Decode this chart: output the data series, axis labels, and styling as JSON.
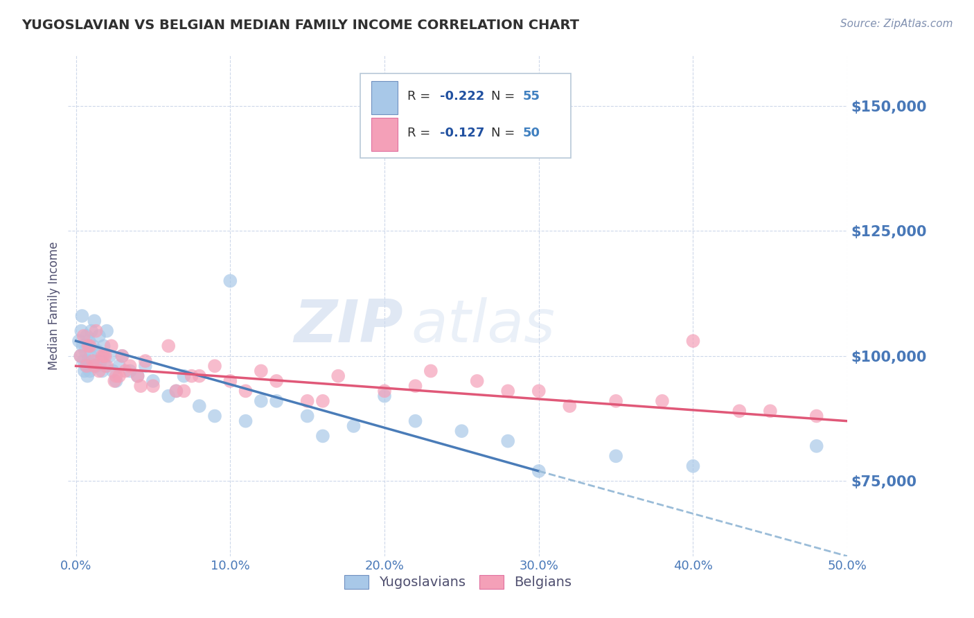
{
  "title": "YUGOSLAVIAN VS BELGIAN MEDIAN FAMILY INCOME CORRELATION CHART",
  "source": "Source: ZipAtlas.com",
  "ylabel": "Median Family Income",
  "xlim": [
    -0.5,
    50.0
  ],
  "ylim": [
    60000,
    160000
  ],
  "yticks": [
    75000,
    100000,
    125000,
    150000
  ],
  "xticks": [
    0.0,
    10.0,
    20.0,
    30.0,
    40.0,
    50.0
  ],
  "yug_R": -0.222,
  "yug_N": 55,
  "bel_R": -0.127,
  "bel_N": 50,
  "yug_color": "#a8c8e8",
  "bel_color": "#f4a0b8",
  "yug_line_color": "#4a7cb8",
  "bel_line_color": "#e05878",
  "dash_line_color": "#9abcd8",
  "background_color": "#ffffff",
  "grid_color": "#c8d4e8",
  "title_color": "#303030",
  "axis_label_color": "#505070",
  "tick_label_color": "#4878b8",
  "legend_r_color": "#2050a0",
  "legend_n_color": "#4080c0",
  "yug_scatter_x": [
    0.2,
    0.3,
    0.35,
    0.4,
    0.45,
    0.5,
    0.55,
    0.6,
    0.65,
    0.7,
    0.75,
    0.8,
    0.85,
    0.9,
    0.95,
    1.0,
    1.1,
    1.2,
    1.3,
    1.4,
    1.5,
    1.6,
    1.7,
    1.8,
    1.9,
    2.0,
    2.2,
    2.4,
    2.6,
    2.8,
    3.0,
    3.5,
    4.0,
    4.5,
    5.0,
    6.0,
    7.0,
    8.0,
    10.0,
    12.0,
    15.0,
    18.0,
    20.0,
    6.5,
    9.0,
    11.0,
    13.0,
    16.0,
    22.0,
    25.0,
    28.0,
    30.0,
    35.0,
    40.0,
    48.0
  ],
  "yug_scatter_y": [
    103000,
    100000,
    105000,
    108000,
    102000,
    99000,
    97000,
    101000,
    98000,
    104000,
    96000,
    99000,
    103000,
    97000,
    100000,
    105000,
    102000,
    107000,
    98000,
    101000,
    104000,
    99000,
    97000,
    102000,
    98000,
    105000,
    100000,
    97000,
    95000,
    98000,
    100000,
    97000,
    96000,
    98000,
    95000,
    92000,
    96000,
    90000,
    115000,
    91000,
    88000,
    86000,
    92000,
    93000,
    88000,
    87000,
    91000,
    84000,
    87000,
    85000,
    83000,
    77000,
    80000,
    78000,
    82000
  ],
  "bel_scatter_x": [
    0.3,
    0.5,
    0.7,
    0.9,
    1.1,
    1.3,
    1.5,
    1.7,
    2.0,
    2.3,
    2.6,
    3.0,
    3.5,
    4.0,
    5.0,
    6.0,
    7.5,
    9.0,
    11.0,
    13.0,
    15.0,
    17.0,
    20.0,
    23.0,
    26.0,
    30.0,
    35.0,
    40.0,
    45.0,
    48.0,
    1.8,
    2.5,
    3.2,
    4.5,
    6.5,
    8.0,
    12.0,
    16.0,
    22.0,
    28.0,
    32.0,
    38.0,
    43.0,
    0.8,
    1.2,
    1.9,
    2.8,
    4.2,
    7.0,
    10.0
  ],
  "bel_scatter_y": [
    100000,
    104000,
    98000,
    102000,
    99000,
    105000,
    97000,
    100000,
    98000,
    102000,
    96000,
    100000,
    98000,
    96000,
    94000,
    102000,
    96000,
    98000,
    93000,
    95000,
    91000,
    96000,
    93000,
    97000,
    95000,
    93000,
    91000,
    103000,
    89000,
    88000,
    100000,
    95000,
    97000,
    99000,
    93000,
    96000,
    97000,
    91000,
    94000,
    93000,
    90000,
    91000,
    89000,
    102000,
    98000,
    100000,
    96000,
    94000,
    93000,
    95000
  ],
  "watermark_zip": "ZIP",
  "watermark_atlas": "atlas",
  "yug_line_x0": 0.0,
  "yug_line_x1": 30.0,
  "yug_line_y0": 103000,
  "yug_line_y1": 77000,
  "yug_dash_x0": 30.0,
  "yug_dash_x1": 50.0,
  "yug_dash_y0": 77000,
  "yug_dash_y1": 60000,
  "bel_line_x0": 0.0,
  "bel_line_x1": 50.0,
  "bel_line_y0": 98000,
  "bel_line_y1": 87000
}
